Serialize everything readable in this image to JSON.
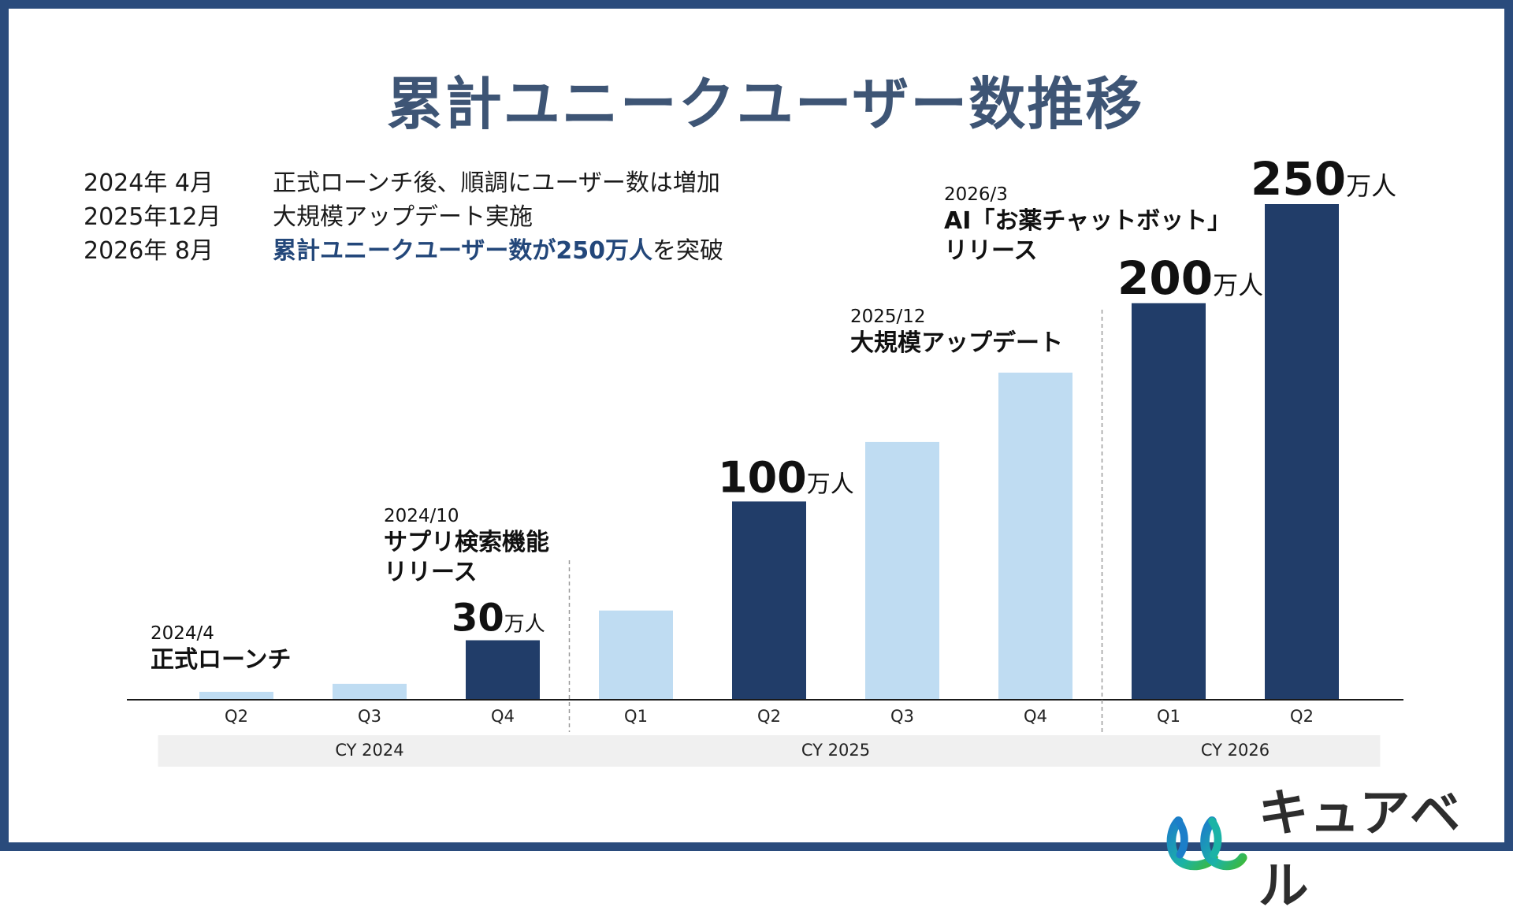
{
  "title": "累計ユニークユーザー数推移",
  "timeline": [
    {
      "date": "2024年  4月",
      "text_pre": "正式ローンチ後、順調にユーザー数は増加",
      "highlight": "",
      "text_post": ""
    },
    {
      "date": "2025年12月",
      "text_pre": "大規模アップデート実施",
      "highlight": "",
      "text_post": ""
    },
    {
      "date": "2026年  8月",
      "text_pre": "",
      "highlight": "累計ユニークユーザー数が250万人",
      "text_post": "を突破"
    }
  ],
  "colors": {
    "border": "#2a4b7c",
    "title": "#3e5575",
    "bar_dark": "#213d69",
    "bar_light": "#bfdcf2",
    "year_band": "#f0f0f0",
    "highlight": "#23477a"
  },
  "chart_data": {
    "type": "bar",
    "unit": "万人",
    "categories": [
      "Q2",
      "Q3",
      "Q4",
      "Q1",
      "Q2",
      "Q3",
      "Q4",
      "Q1",
      "Q2"
    ],
    "years": [
      "CY 2024",
      "CY 2025",
      "CY 2026"
    ],
    "year_of_category": [
      0,
      0,
      0,
      1,
      1,
      1,
      1,
      2,
      2
    ],
    "values": [
      4,
      8,
      30,
      45,
      100,
      130,
      165,
      200,
      250
    ],
    "highlighted": [
      false,
      false,
      true,
      false,
      true,
      false,
      false,
      true,
      true
    ],
    "value_labels": [
      null,
      null,
      "30",
      null,
      "100",
      null,
      null,
      "200",
      "250"
    ],
    "annotations": [
      {
        "category_index": 0,
        "date": "2024/4",
        "lines": [
          "正式ローンチ"
        ]
      },
      {
        "category_index": 2,
        "date": "2024/10",
        "lines": [
          "サプリ検索機能",
          "リリース"
        ]
      },
      {
        "category_index": 6,
        "date": "2025/12",
        "lines": [
          "大規模アップデート"
        ]
      },
      {
        "category_index": 7,
        "date": "2026/3",
        "lines": [
          "AI「お薬チャットボット」",
          "リリース"
        ]
      }
    ],
    "ylim": [
      0,
      260
    ]
  },
  "logo": {
    "text": "キュアベル",
    "icon": "logo-mark-icon"
  }
}
